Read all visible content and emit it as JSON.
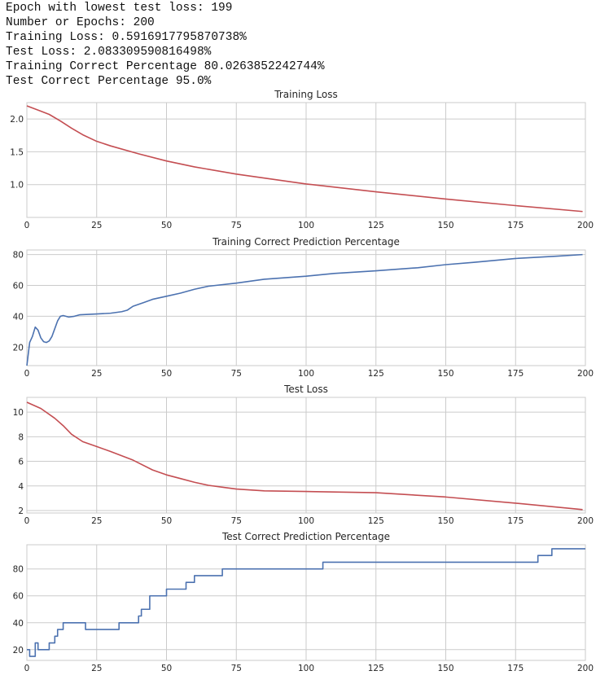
{
  "stats": [
    "Epoch with lowest test loss: 199",
    "Number or Epochs: 200",
    "Training Loss: 0.5916917795870738%",
    "Test Loss: 2.083309590816498%",
    "Training Correct Percentage 80.0263852242744%",
    "Test Correct Percentage 95.0%"
  ],
  "colors": {
    "loss": "#c44e52",
    "accuracy": "#4c72b0"
  },
  "chart_data": [
    {
      "type": "line",
      "title": "Training Loss",
      "xlim": [
        0,
        200
      ],
      "xticks": [
        0,
        25,
        50,
        75,
        100,
        125,
        150,
        175,
        200
      ],
      "ylim": [
        0.5,
        2.25
      ],
      "yticks": [
        1.0,
        1.5,
        2.0
      ],
      "ytick_labels": [
        "1.0",
        "1.5",
        "2.0"
      ],
      "color": "loss",
      "step": false,
      "points": [
        [
          0,
          2.2
        ],
        [
          5,
          2.12
        ],
        [
          8,
          2.07
        ],
        [
          12,
          1.97
        ],
        [
          16,
          1.86
        ],
        [
          20,
          1.76
        ],
        [
          25,
          1.66
        ],
        [
          30,
          1.59
        ],
        [
          40,
          1.47
        ],
        [
          50,
          1.36
        ],
        [
          60,
          1.27
        ],
        [
          75,
          1.16
        ],
        [
          100,
          1.01
        ],
        [
          125,
          0.89
        ],
        [
          150,
          0.78
        ],
        [
          175,
          0.68
        ],
        [
          199,
          0.59
        ]
      ]
    },
    {
      "type": "line",
      "title": "Training Correct Prediction Percentage",
      "xlim": [
        0,
        200
      ],
      "xticks": [
        0,
        25,
        50,
        75,
        100,
        125,
        150,
        175,
        200
      ],
      "ylim": [
        8,
        83
      ],
      "yticks": [
        20,
        40,
        60,
        80
      ],
      "ytick_labels": [
        "20",
        "40",
        "60",
        "80"
      ],
      "color": "accuracy",
      "step": false,
      "points": [
        [
          0,
          8
        ],
        [
          1,
          23
        ],
        [
          2,
          27
        ],
        [
          3,
          33
        ],
        [
          4,
          31
        ],
        [
          5,
          26
        ],
        [
          6,
          23.5
        ],
        [
          7,
          23
        ],
        [
          8,
          24
        ],
        [
          9,
          27
        ],
        [
          10,
          32
        ],
        [
          11,
          37
        ],
        [
          12,
          40
        ],
        [
          13,
          40.5
        ],
        [
          15,
          39.5
        ],
        [
          17,
          40
        ],
        [
          19,
          41
        ],
        [
          25,
          41.5
        ],
        [
          30,
          42
        ],
        [
          34,
          43
        ],
        [
          36,
          44
        ],
        [
          38,
          46.5
        ],
        [
          42,
          49
        ],
        [
          45,
          51
        ],
        [
          50,
          53
        ],
        [
          55,
          55
        ],
        [
          60,
          57.5
        ],
        [
          65,
          59.5
        ],
        [
          75,
          61.5
        ],
        [
          85,
          64
        ],
        [
          100,
          66
        ],
        [
          110,
          67.8
        ],
        [
          125,
          69.5
        ],
        [
          140,
          71.5
        ],
        [
          150,
          73.5
        ],
        [
          160,
          75
        ],
        [
          175,
          77.5
        ],
        [
          190,
          79
        ],
        [
          199,
          80.03
        ]
      ]
    },
    {
      "type": "line",
      "title": "Test Loss",
      "xlim": [
        0,
        200
      ],
      "xticks": [
        0,
        25,
        50,
        75,
        100,
        125,
        150,
        175,
        200
      ],
      "ylim": [
        1.8,
        11.2
      ],
      "yticks": [
        2,
        4,
        6,
        8,
        10
      ],
      "ytick_labels": [
        "2",
        "4",
        "6",
        "8",
        "10"
      ],
      "color": "loss",
      "step": false,
      "points": [
        [
          0,
          10.8
        ],
        [
          5,
          10.3
        ],
        [
          10,
          9.5
        ],
        [
          13,
          8.9
        ],
        [
          16,
          8.2
        ],
        [
          20,
          7.6
        ],
        [
          25,
          7.2
        ],
        [
          30,
          6.8
        ],
        [
          38,
          6.1
        ],
        [
          45,
          5.3
        ],
        [
          50,
          4.9
        ],
        [
          55,
          4.6
        ],
        [
          60,
          4.3
        ],
        [
          65,
          4.05
        ],
        [
          70,
          3.9
        ],
        [
          75,
          3.75
        ],
        [
          85,
          3.6
        ],
        [
          100,
          3.55
        ],
        [
          125,
          3.45
        ],
        [
          150,
          3.1
        ],
        [
          175,
          2.6
        ],
        [
          199,
          2.08
        ]
      ]
    },
    {
      "type": "line",
      "title": "Test Correct Prediction Percentage",
      "xlim": [
        0,
        200
      ],
      "xticks": [
        0,
        25,
        50,
        75,
        100,
        125,
        150,
        175,
        200
      ],
      "ylim": [
        12,
        98
      ],
      "yticks": [
        20,
        40,
        60,
        80
      ],
      "ytick_labels": [
        "20",
        "40",
        "60",
        "80"
      ],
      "color": "accuracy",
      "step": true,
      "points": [
        [
          0,
          20
        ],
        [
          1,
          15
        ],
        [
          2,
          15
        ],
        [
          3,
          25
        ],
        [
          4,
          20
        ],
        [
          8,
          25
        ],
        [
          10,
          30
        ],
        [
          11,
          35
        ],
        [
          12,
          35
        ],
        [
          13,
          40
        ],
        [
          20,
          40
        ],
        [
          21,
          35
        ],
        [
          32,
          35
        ],
        [
          33,
          40
        ],
        [
          39,
          40
        ],
        [
          40,
          45
        ],
        [
          41,
          50
        ],
        [
          43,
          50
        ],
        [
          44,
          60
        ],
        [
          49,
          60
        ],
        [
          50,
          65
        ],
        [
          56,
          65
        ],
        [
          57,
          70
        ],
        [
          59,
          70
        ],
        [
          60,
          75
        ],
        [
          69,
          75
        ],
        [
          70,
          80
        ],
        [
          105,
          80
        ],
        [
          106,
          85
        ],
        [
          182,
          85
        ],
        [
          183,
          90
        ],
        [
          187,
          90
        ],
        [
          188,
          95
        ],
        [
          200,
          95
        ]
      ]
    }
  ]
}
